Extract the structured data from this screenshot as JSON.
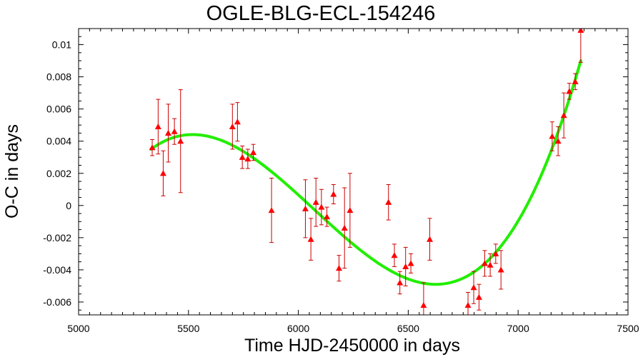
{
  "chart_data": {
    "type": "scatter",
    "title": "OGLE-BLG-ECL-154246",
    "xlabel": "Time HJD-2450000 in days",
    "ylabel": "O-C in days",
    "xlim": [
      5000,
      7500
    ],
    "ylim": [
      -0.0068,
      0.011
    ],
    "x_ticks": [
      5000,
      5500,
      6000,
      6500,
      7000,
      7500
    ],
    "x_tick_labels": [
      "5000",
      "5500",
      "6000",
      "6500",
      "7000",
      "7500"
    ],
    "y_ticks": [
      -0.006,
      -0.004,
      -0.002,
      0,
      0.002,
      0.004,
      0.006,
      0.008,
      0.01
    ],
    "y_tick_labels": [
      "-0.006",
      "-0.004",
      "-0.002",
      "0",
      "0.002",
      "0.004",
      "0.006",
      "0.008",
      "0.01"
    ],
    "grid": false,
    "colors": {
      "points": "#ff0000",
      "errorbars": "#cc0000",
      "fit": "#22ee00",
      "frame": "#000000"
    },
    "series": [
      {
        "marker": "triangle",
        "points": [
          {
            "x": 5335,
            "y": 0.0036,
            "err": 0.0005
          },
          {
            "x": 5362,
            "y": 0.0049,
            "err": 0.0017
          },
          {
            "x": 5385,
            "y": 0.002,
            "err": 0.0014
          },
          {
            "x": 5408,
            "y": 0.0045,
            "err": 0.0018
          },
          {
            "x": 5436,
            "y": 0.0046,
            "err": 0.0008
          },
          {
            "x": 5464,
            "y": 0.004,
            "err": 0.0032
          },
          {
            "x": 5700,
            "y": 0.0049,
            "err": 0.0014
          },
          {
            "x": 5723,
            "y": 0.0052,
            "err": 0.0012
          },
          {
            "x": 5745,
            "y": 0.003,
            "err": 0.0007
          },
          {
            "x": 5770,
            "y": 0.0029,
            "err": 0.0006
          },
          {
            "x": 5795,
            "y": 0.0033,
            "err": 0.0005
          },
          {
            "x": 5878,
            "y": -0.0003,
            "err": 0.002
          },
          {
            "x": 6032,
            "y": -0.0002,
            "err": 0.0018
          },
          {
            "x": 6057,
            "y": -0.0021,
            "err": 0.0013
          },
          {
            "x": 6080,
            "y": 0.0002,
            "err": 0.0015
          },
          {
            "x": 6105,
            "y": -0.0001,
            "err": 0.0011
          },
          {
            "x": 6130,
            "y": -0.0007,
            "err": 0.0006
          },
          {
            "x": 6160,
            "y": 0.0007,
            "err": 0.0006
          },
          {
            "x": 6185,
            "y": -0.0039,
            "err": 0.0008
          },
          {
            "x": 6210,
            "y": -0.0014,
            "err": 0.0025
          },
          {
            "x": 6235,
            "y": -0.0003,
            "err": 0.0023
          },
          {
            "x": 6410,
            "y": 0.0002,
            "err": 0.0011
          },
          {
            "x": 6437,
            "y": -0.0031,
            "err": 0.0007
          },
          {
            "x": 6462,
            "y": -0.0048,
            "err": 0.0007
          },
          {
            "x": 6488,
            "y": -0.0038,
            "err": 0.0012
          },
          {
            "x": 6512,
            "y": -0.0036,
            "err": 0.0006
          },
          {
            "x": 6570,
            "y": -0.0062,
            "err": 0.0014
          },
          {
            "x": 6598,
            "y": -0.0021,
            "err": 0.0013
          },
          {
            "x": 6772,
            "y": -0.0062,
            "err": 0.0008
          },
          {
            "x": 6798,
            "y": -0.0051,
            "err": 0.001
          },
          {
            "x": 6822,
            "y": -0.0057,
            "err": 0.0008
          },
          {
            "x": 6848,
            "y": -0.0036,
            "err": 0.0008
          },
          {
            "x": 6873,
            "y": -0.0037,
            "err": 0.0007
          },
          {
            "x": 6898,
            "y": -0.003,
            "err": 0.0006
          },
          {
            "x": 6922,
            "y": -0.004,
            "err": 0.0012
          },
          {
            "x": 7155,
            "y": 0.0043,
            "err": 0.0009
          },
          {
            "x": 7182,
            "y": 0.004,
            "err": 0.0009
          },
          {
            "x": 7208,
            "y": 0.0056,
            "err": 0.0014
          },
          {
            "x": 7233,
            "y": 0.0071,
            "err": 0.0005
          },
          {
            "x": 7260,
            "y": 0.0077,
            "err": 0.0005
          },
          {
            "x": 7285,
            "y": 0.0109,
            "err": 0.002
          }
        ]
      }
    ],
    "fit": {
      "type": "cubic",
      "x_range": [
        5330,
        7285
      ],
      "through": [
        {
          "x": 5330,
          "y": 0.0035
        },
        {
          "x": 6140,
          "y": -0.0011
        },
        {
          "x": 6690,
          "y": -0.0048
        },
        {
          "x": 7285,
          "y": 0.009
        }
      ]
    }
  }
}
